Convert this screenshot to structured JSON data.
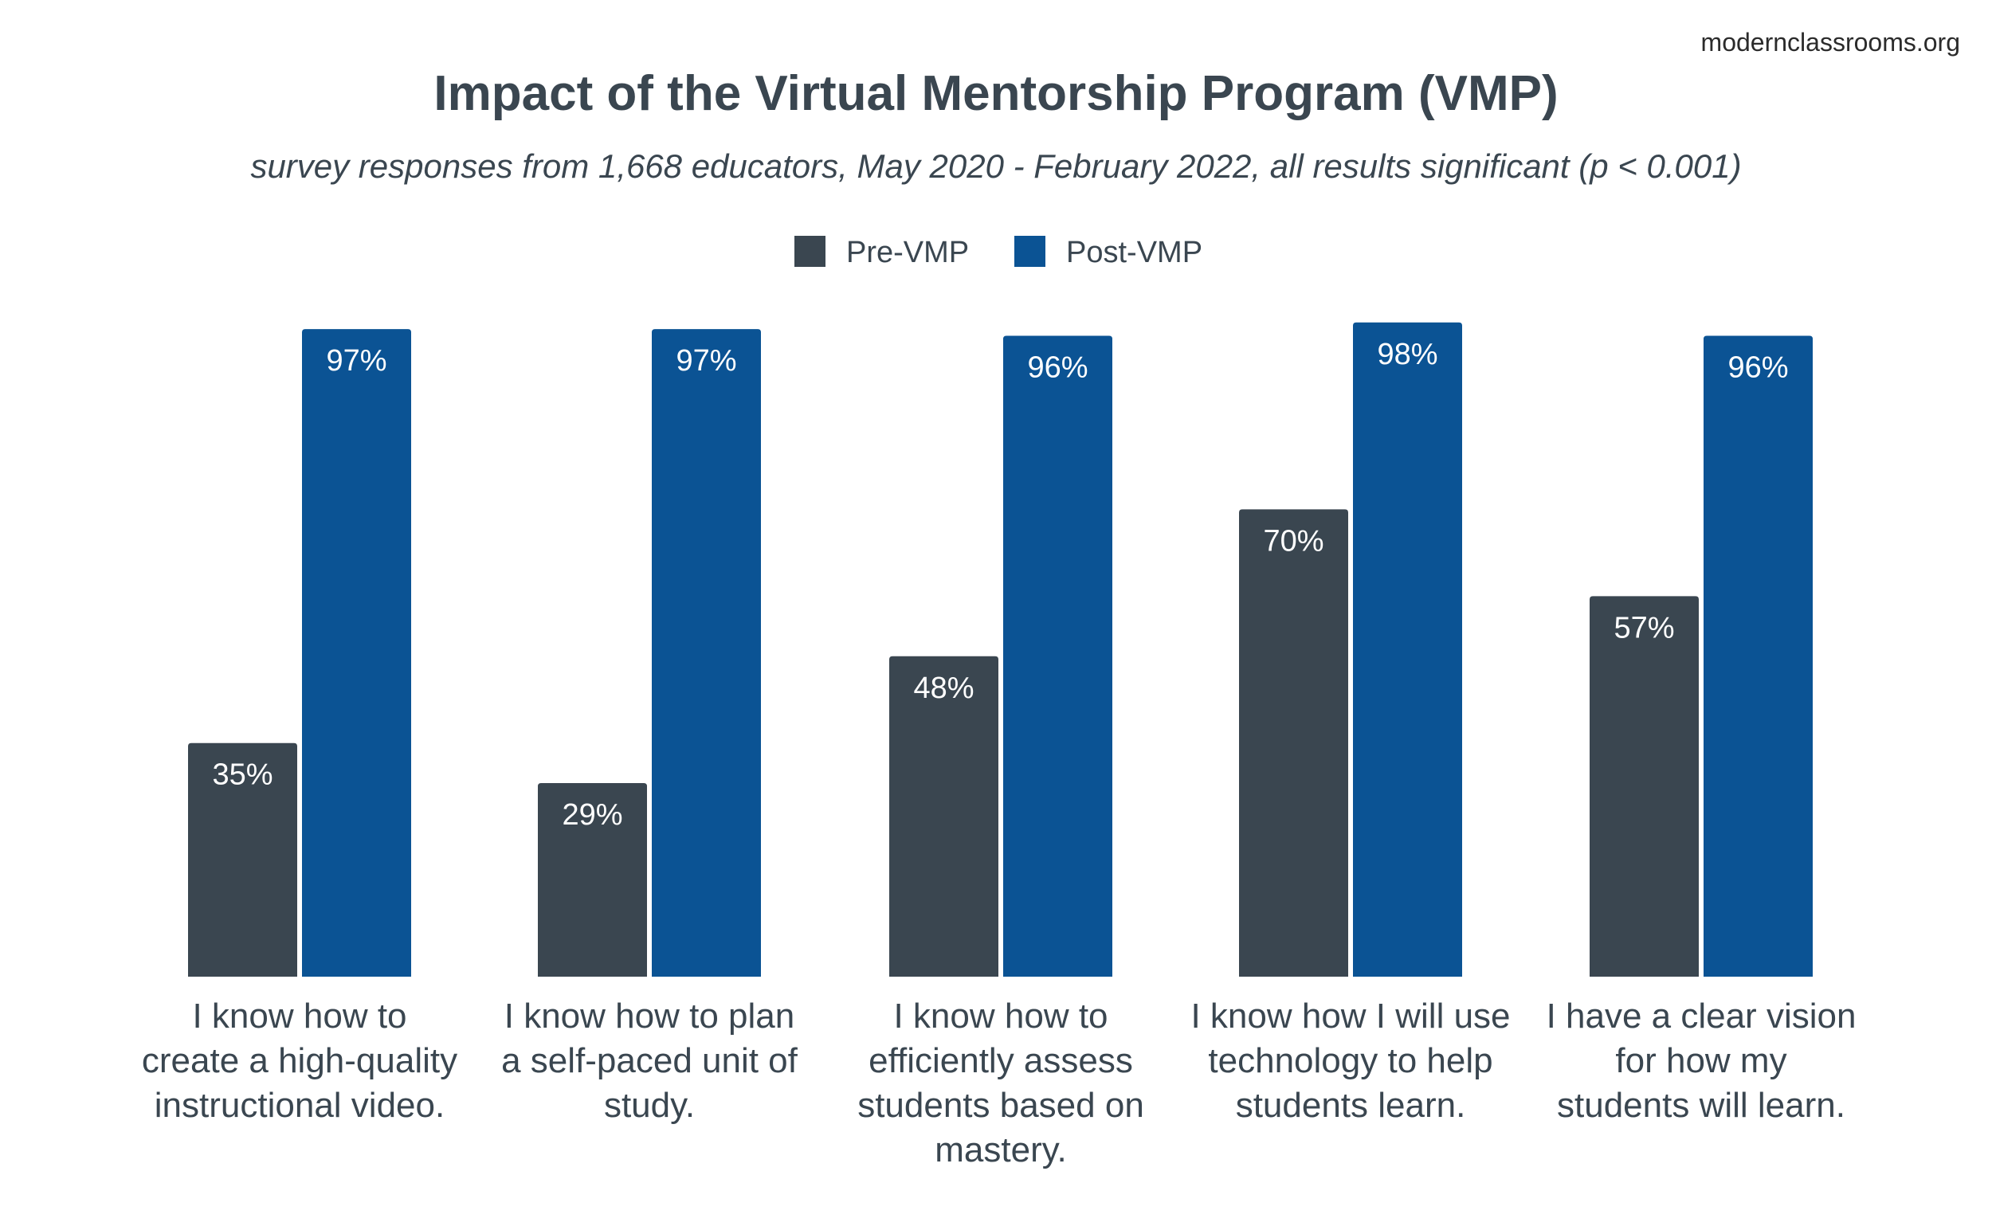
{
  "source": "modernclassrooms.org",
  "chart_data": {
    "type": "bar",
    "title": "Impact of the Virtual Mentorship Program (VMP)",
    "subtitle": "survey responses from 1,668 educators, May 2020 - February 2022, all results significant (p < 0.001)",
    "xlabel": "",
    "ylabel": "",
    "ylim": [
      0,
      100
    ],
    "grid": false,
    "legend_position": "top-center",
    "categories": [
      [
        "I know how to",
        "create a high-quality",
        "instructional video."
      ],
      [
        "I know how to plan",
        "a self-paced unit of",
        "study."
      ],
      [
        "I know how to",
        "efficiently assess",
        "students based on",
        "mastery."
      ],
      [
        "I know how I will use",
        "technology to help",
        "students learn."
      ],
      [
        "I have a clear vision",
        "for how my",
        "students will learn."
      ]
    ],
    "series": [
      {
        "name": "Pre-VMP",
        "color": "#3a4650",
        "values": [
          35,
          29,
          48,
          70,
          57
        ],
        "labels": [
          "35%",
          "29%",
          "48%",
          "70%",
          "57%"
        ]
      },
      {
        "name": "Post-VMP",
        "color": "#0b5394",
        "values": [
          97,
          97,
          96,
          98,
          96
        ],
        "labels": [
          "97%",
          "97%",
          "96%",
          "98%",
          "96%"
        ]
      }
    ]
  }
}
